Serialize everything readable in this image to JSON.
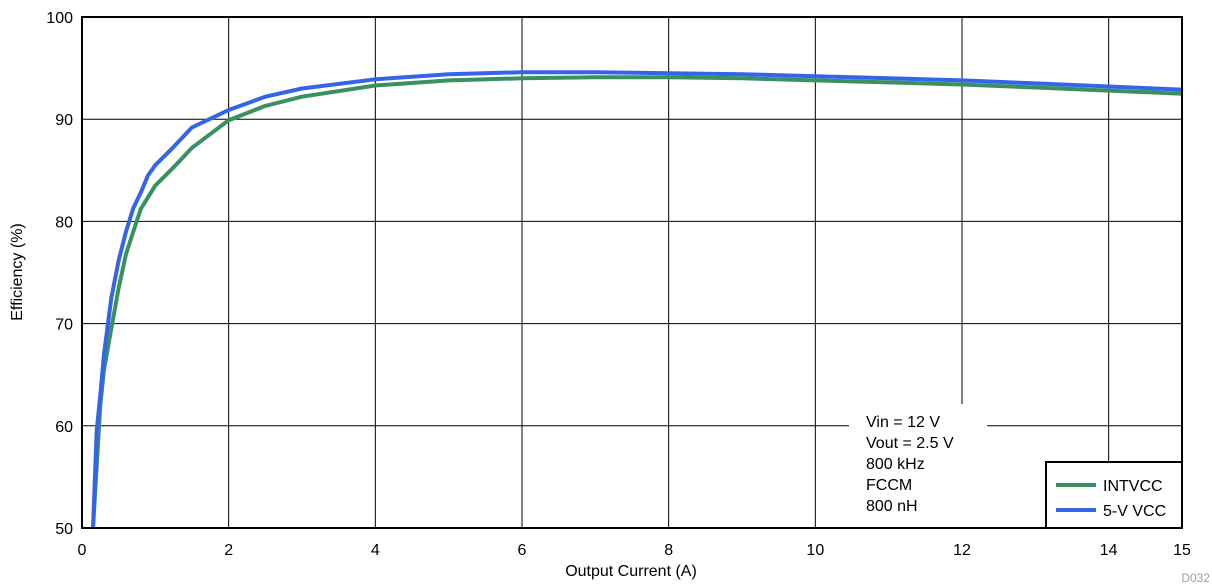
{
  "chart_data": {
    "type": "line",
    "xlabel": "Output Current (A)",
    "ylabel": "Efficiency (%)",
    "xlim": [
      0,
      15
    ],
    "ylim": [
      50,
      100
    ],
    "xticks": [
      "0",
      "2",
      "4",
      "6",
      "8",
      "10",
      "12",
      "14",
      "15"
    ],
    "yticks": [
      "50",
      "60",
      "70",
      "80",
      "90",
      "100"
    ],
    "grid": true,
    "legend_position": "bottom-right",
    "annotation_lines": [
      "Vin = 12 V",
      "Vout = 2.5 V",
      "800 kHz",
      "FCCM",
      "800 nH"
    ],
    "figure_id": "D032",
    "series": [
      {
        "name": "INTVCC",
        "color": "#3a9160",
        "x": [
          0.15,
          0.2,
          0.25,
          0.3,
          0.4,
          0.5,
          0.6,
          0.7,
          0.8,
          1.0,
          1.25,
          1.5,
          2.0,
          2.5,
          3.0,
          4.0,
          5.0,
          6.0,
          7.0,
          8.0,
          9.0,
          10.0,
          11.0,
          12.0,
          13.0,
          14.0,
          15.0
        ],
        "y": [
          50.0,
          56.0,
          62.0,
          65.5,
          69.5,
          73.5,
          76.8,
          79.0,
          81.2,
          83.5,
          85.3,
          87.2,
          89.9,
          91.3,
          92.2,
          93.3,
          93.8,
          94.0,
          94.1,
          94.1,
          94.0,
          93.8,
          93.6,
          93.4,
          93.1,
          92.8,
          92.5
        ]
      },
      {
        "name": "5-V VCC",
        "color": "#3464e8",
        "x": [
          0.15,
          0.2,
          0.25,
          0.3,
          0.4,
          0.5,
          0.6,
          0.7,
          0.8,
          0.9,
          1.0,
          1.25,
          1.5,
          2.0,
          2.5,
          3.0,
          4.0,
          5.0,
          6.0,
          7.0,
          8.0,
          9.0,
          10.0,
          11.0,
          12.0,
          13.0,
          14.0,
          15.0
        ],
        "y": [
          50.0,
          59.5,
          63.0,
          67.0,
          72.5,
          76.2,
          79.0,
          81.3,
          82.8,
          84.5,
          85.5,
          87.3,
          89.2,
          90.9,
          92.2,
          93.0,
          93.9,
          94.4,
          94.6,
          94.6,
          94.5,
          94.4,
          94.2,
          94.0,
          93.8,
          93.5,
          93.2,
          92.9
        ]
      }
    ]
  }
}
